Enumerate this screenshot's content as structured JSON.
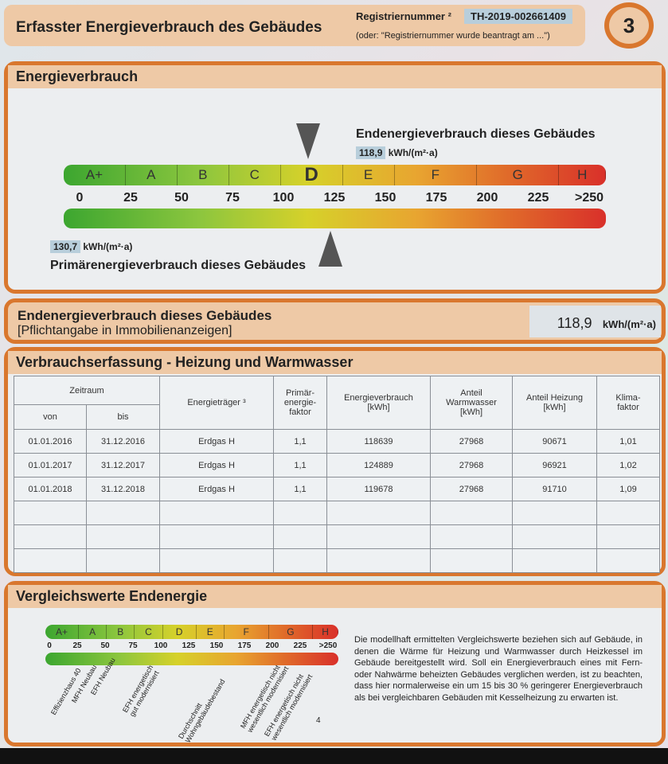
{
  "header": {
    "title": "Erfasster Energieverbrauch des Gebäudes",
    "reg_label": "Registriernummer ²",
    "reg_number": "TH-2019-002661409",
    "reg_note": "(oder: \"Registriernummer wurde beantragt am ...\")",
    "page_number": "3"
  },
  "consumption": {
    "title": "Energieverbrauch",
    "end_label": "Endenergieverbrauch dieses Gebäudes",
    "end_value": "118,9",
    "end_unit": "kWh/(m²·a)",
    "primary_value": "130,7",
    "primary_unit": "kWh/(m²·a)",
    "primary_label": "Primärenergieverbrauch dieses Gebäudes",
    "classes": [
      "A+",
      "A",
      "B",
      "C",
      "D",
      "E",
      "F",
      "G",
      "H"
    ],
    "active_class": "D",
    "ticks": [
      "0",
      "25",
      "50",
      "75",
      "100",
      "125",
      "150",
      "175",
      "200",
      "225",
      ">250"
    ],
    "end_value_num": 118.9,
    "primary_value_num": 130.7
  },
  "summary": {
    "title": "Endenergieverbrauch dieses Gebäudes",
    "subtitle": "[Pflichtangabe in Immobilienanzeigen]",
    "value": "118,9",
    "unit": "kWh/(m²·a)"
  },
  "table": {
    "title": "Verbrauchserfassung - Heizung und Warmwasser",
    "headers": {
      "zeitraum": "Zeitraum",
      "von": "von",
      "bis": "bis",
      "traeger": "Energieträger ³",
      "primaer": "Primär-\nenergie-\nfaktor",
      "verbrauch": "Energieverbrauch\n[kWh]",
      "ww": "Anteil\nWarmwasser\n[kWh]",
      "heizung": "Anteil Heizung\n[kWh]",
      "klima": "Klima-\nfaktor"
    },
    "rows": [
      [
        "01.01.2016",
        "31.12.2016",
        "Erdgas H",
        "1,1",
        "118639",
        "27968",
        "90671",
        "1,01"
      ],
      [
        "01.01.2017",
        "31.12.2017",
        "Erdgas H",
        "1,1",
        "124889",
        "27968",
        "96921",
        "1,02"
      ],
      [
        "01.01.2018",
        "31.12.2018",
        "Erdgas H",
        "1,1",
        "119678",
        "27968",
        "91710",
        "1,09"
      ]
    ]
  },
  "compare": {
    "title": "Vergleichswerte Endenergie",
    "labels": [
      "Effizienzhaus 40",
      "MFH Neubau",
      "EFH Neubau",
      "EFH energetisch\ngut modernisiert",
      "Durchschnitt\nWohngebäudebestand",
      "MFH energetisch nicht\nwesentlich modernisiert",
      "EFH energetisch nicht\nwesentlich modernisiert"
    ],
    "footnote": "4",
    "text": "Die modellhaft ermittelten Vergleichswerte beziehen sich auf Gebäude, in denen die Wärme für Heizung und Warmwasser durch Heizkessel im Gebäude bereitgestellt wird. Soll ein Energieverbrauch eines mit Fern- oder Nahwärme beheizten Gebäudes verglichen werden, ist zu beachten, dass hier normalerweise ein um 15 bis 30 % geringerer Energieverbrauch als bei vergleichbaren Gebäuden mit Kesselheizung zu erwarten ist."
  }
}
